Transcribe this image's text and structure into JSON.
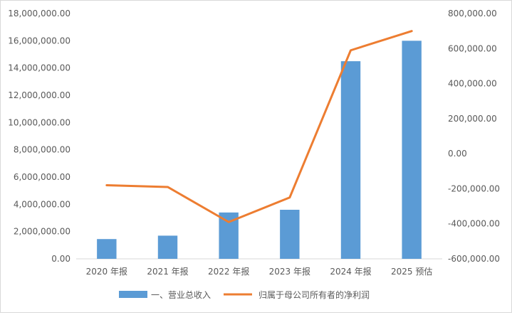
{
  "chart_data": {
    "type": "bar-line-combo",
    "categories": [
      "2020 年报",
      "2021 年报",
      "2022 年报",
      "2023 年报",
      "2024 年报",
      "2025 预估"
    ],
    "series": [
      {
        "name": "一、营业总收入",
        "type": "bar",
        "axis": "left",
        "color": "#5b9bd5",
        "values": [
          1450000,
          1700000,
          3400000,
          3600000,
          14500000,
          16000000
        ]
      },
      {
        "name": "归属于母公司所有者的净利润",
        "type": "line",
        "axis": "right",
        "color": "#ed7d31",
        "values": [
          -180000,
          -190000,
          -390000,
          -250000,
          590000,
          700000
        ]
      }
    ],
    "left_axis": {
      "min": 0,
      "max": 18000000,
      "step": 2000000,
      "tick_labels": [
        "0.00",
        "2,000,000.00",
        "4,000,000.00",
        "6,000,000.00",
        "8,000,000.00",
        "10,000,000.00",
        "12,000,000.00",
        "14,000,000.00",
        "16,000,000.00",
        "18,000,000.00"
      ]
    },
    "right_axis": {
      "min": -600000,
      "max": 800000,
      "step": 200000,
      "tick_labels": [
        "-600,000.00",
        "-400,000.00",
        "-200,000.00",
        "0.00",
        "200,000.00",
        "400,000.00",
        "600,000.00",
        "800,000.00"
      ]
    },
    "grid": false,
    "legend_position": "bottom"
  }
}
